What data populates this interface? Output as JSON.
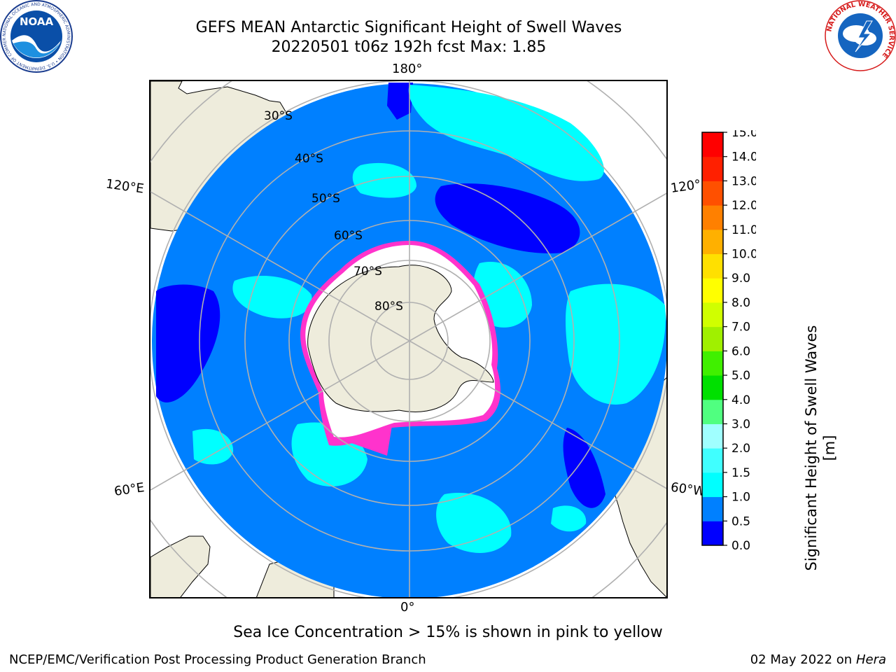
{
  "header": {
    "title_line1": "GEFS MEAN Antarctic Significant Height of Swell Waves",
    "title_line2": "20220501 t06z 192h fcst   Max: 1.85"
  },
  "logos": {
    "left": "NOAA",
    "left_ring_text": "NATIONAL OCEANIC AND ATMOSPHERIC ADMINISTRATION • U.S. DEPARTMENT OF COMMERCE",
    "right_ring_text": "NATIONAL WEATHER SERVICE"
  },
  "map": {
    "projection": "south-polar-stereographic",
    "longitude_labels": {
      "top": "180°",
      "bottom": "0°",
      "upper_left": "120°E",
      "lower_left": "60°E",
      "upper_right": "120°",
      "lower_right": "60°W"
    },
    "latitude_labels": [
      "30°S",
      "40°S",
      "50°S",
      "60°S",
      "70°S",
      "80°S"
    ],
    "colors": {
      "land": "#eeecdc",
      "ocean_default": "#0080ff",
      "ice_edge": "#ff33cc",
      "grid": "#b0b0b0"
    }
  },
  "colorbar": {
    "label": "Significant Height of Swell Waves [m]",
    "ticks": [
      "0.0",
      "0.5",
      "1.0",
      "1.5",
      "2.0",
      "3.0",
      "4.0",
      "5.0",
      "6.0",
      "7.0",
      "8.0",
      "9.0",
      "10.0",
      "11.0",
      "12.0",
      "13.0",
      "14.0",
      "15.0"
    ],
    "colors": [
      "#0000ff",
      "#0080ff",
      "#00ffff",
      "#40ffff",
      "#a0ffff",
      "#50ff80",
      "#00e000",
      "#40f000",
      "#a0f000",
      "#d0ff00",
      "#ffff00",
      "#ffe000",
      "#ffb000",
      "#ff8000",
      "#ff5000",
      "#ff2000",
      "#ff0000"
    ]
  },
  "bottom_note": "Sea Ice Concentration > 15% is shown in pink to yellow",
  "footer": {
    "left": "NCEP/EMC/Verification Post Processing Product Generation Branch",
    "right_date": "02 May 2022 on",
    "right_model": "Hera"
  }
}
